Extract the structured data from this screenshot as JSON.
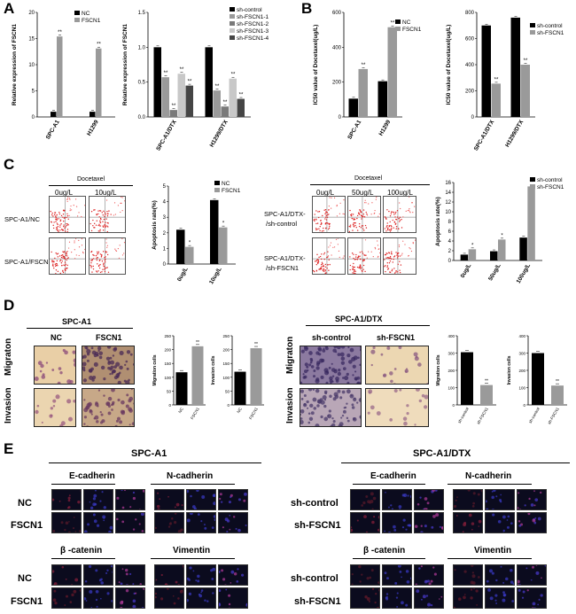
{
  "panels": {
    "A": "A",
    "B": "B",
    "C": "C",
    "D": "D",
    "E": "E"
  },
  "colors": {
    "black": "#000000",
    "gray": "#9a9a9a",
    "light": "#c8c8c8",
    "mid": "#7a7a7a",
    "dark": "#454545"
  },
  "chart_data": [
    {
      "id": "a1",
      "type": "bar",
      "ylabel": "Relative expression of FSCN1",
      "categories": [
        "SPC-A1",
        "H1299"
      ],
      "series": [
        {
          "name": "NC",
          "values": [
            1,
            1
          ]
        },
        {
          "name": "FSCN1",
          "values": [
            15.4,
            13.1
          ]
        }
      ],
      "ylim": [
        0,
        20
      ],
      "yticks": [
        "0",
        "5",
        "10",
        "15",
        "20"
      ],
      "sig": [
        "**",
        "**"
      ]
    },
    {
      "id": "a2",
      "type": "bar",
      "ylabel": "Relative expression of FSCN1",
      "categories": [
        "SPC-A1/DTX",
        "H1299/DTX"
      ],
      "series": [
        {
          "name": "sh-control",
          "values": [
            1,
            1
          ]
        },
        {
          "name": "sh-FSCN1-1",
          "values": [
            0.57,
            0.38
          ]
        },
        {
          "name": "sh-FSCN1-2",
          "values": [
            0.1,
            0.15
          ]
        },
        {
          "name": "sh-FSCN1-3",
          "values": [
            0.62,
            0.55
          ]
        },
        {
          "name": "sh-FSCN1-4",
          "values": [
            0.45,
            0.26
          ]
        }
      ],
      "ylim": [
        0,
        1.5
      ],
      "yticks": [
        "0.0",
        "0.5",
        "1.0",
        "1.5"
      ],
      "sig": "**"
    },
    {
      "id": "b1",
      "type": "bar",
      "ylabel": "IC50 value of Docetaxel(ug/L)",
      "categories": [
        "SPC-A1",
        "H1299"
      ],
      "series": [
        {
          "name": "NC",
          "values": [
            105,
            205
          ]
        },
        {
          "name": "FSCN1",
          "values": [
            275,
            515
          ]
        }
      ],
      "ylim": [
        0,
        600
      ],
      "yticks": [
        "0",
        "200",
        "400",
        "600"
      ],
      "sig": [
        "**",
        "**"
      ]
    },
    {
      "id": "b2",
      "type": "bar",
      "ylabel": "IC50 value of Docetaxel(ug/L)",
      "categories": [
        "SPC-A1/DTX",
        "H1299/DTX"
      ],
      "series": [
        {
          "name": "sh-control",
          "values": [
            700,
            760
          ]
        },
        {
          "name": "sh-FSCN1",
          "values": [
            255,
            400
          ]
        }
      ],
      "ylim": [
        0,
        800
      ],
      "yticks": [
        "0",
        "200",
        "400",
        "600",
        "800"
      ],
      "sig": [
        "**",
        "**"
      ]
    },
    {
      "id": "c1",
      "type": "bar",
      "ylabel": "Apoptosis rate(%)",
      "categories": [
        "0ug/L",
        "10ug/L"
      ],
      "series": [
        {
          "name": "NC",
          "values": [
            2.2,
            4.1
          ]
        },
        {
          "name": "FSCN1",
          "values": [
            1.1,
            2.35
          ]
        }
      ],
      "ylim": [
        0,
        5
      ],
      "yticks": [
        "0",
        "1",
        "2",
        "3",
        "4",
        "5"
      ],
      "sig": [
        "*",
        "*"
      ]
    },
    {
      "id": "c2",
      "type": "bar",
      "ylabel": "Apoptosis rate(%)",
      "categories": [
        "0ug/L",
        "50ug/L",
        "100ug/L"
      ],
      "series": [
        {
          "name": "sh-control",
          "values": [
            1.2,
            1.9,
            4.7
          ]
        },
        {
          "name": "sh-FSCN1",
          "values": [
            2.3,
            4.3,
            15.2
          ]
        }
      ],
      "ylim": [
        0,
        16
      ],
      "yticks": [
        "0",
        "2",
        "4",
        "6",
        "8",
        "10",
        "12",
        "14",
        "16"
      ],
      "sig": [
        "*",
        "*",
        "**"
      ]
    },
    {
      "id": "d1",
      "type": "bar",
      "ylabel": "Migration cells",
      "categories": [
        "NC",
        "FSCN1"
      ],
      "values": [
        118,
        212
      ],
      "ylim": [
        0,
        250
      ],
      "yticks": [
        "0",
        "50",
        "100",
        "150",
        "200",
        "250"
      ],
      "sig": "**"
    },
    {
      "id": "d2",
      "type": "bar",
      "ylabel": "Invasion cells",
      "categories": [
        "NC",
        "FSCN1"
      ],
      "values": [
        120,
        205
      ],
      "ylim": [
        0,
        250
      ],
      "yticks": [
        "0",
        "50",
        "100",
        "150",
        "200",
        "250"
      ],
      "sig": "**"
    },
    {
      "id": "d3",
      "type": "bar",
      "ylabel": "Migration cells",
      "categories": [
        "sh-control",
        "sh-FSCN1"
      ],
      "values": [
        305,
        115
      ],
      "ylim": [
        0,
        400
      ],
      "yticks": [
        "0",
        "100",
        "200",
        "300",
        "400"
      ],
      "sig": "**"
    },
    {
      "id": "d4",
      "type": "bar",
      "ylabel": "Invasion cells",
      "categories": [
        "sh-control",
        "sh-FSCN1"
      ],
      "values": [
        300,
        112
      ],
      "ylim": [
        0,
        400
      ],
      "yticks": [
        "0",
        "100",
        "200",
        "300",
        "400"
      ],
      "sig": "**"
    }
  ],
  "panelC": {
    "docetaxel": "Docetaxel",
    "left_cols": [
      "0ug/L",
      "10ug/L"
    ],
    "left_rows": [
      "SPC-A1/NC",
      "SPC-A1/FSCN1"
    ],
    "right_cols": [
      "0ug/L",
      "50ug/L",
      "100ug/L"
    ],
    "right_rows": [
      [
        "SPC-A1/DTX-",
        "/sh-control"
      ],
      [
        "SPC-A1/DTX-",
        "/sh-FSCN1"
      ]
    ]
  },
  "panelD": {
    "left_title": "SPC-A1",
    "left_cols": [
      "NC",
      "FSCN1"
    ],
    "right_title": "SPC-A1/DTX",
    "right_cols": [
      "sh-control",
      "sh-FSCN1"
    ],
    "rows": [
      "Migraton",
      "Invasion"
    ]
  },
  "panelE": {
    "left_title": "SPC-A1",
    "right_title": "SPC-A1/DTX",
    "markers_top": [
      "E-cadherin",
      "N-cadherin"
    ],
    "markers_bottom": [
      "β -catenin",
      "Vimentin"
    ],
    "left_rows": [
      "NC",
      "FSCN1"
    ],
    "right_rows": [
      "sh-control",
      "sh-FSCN1"
    ]
  }
}
